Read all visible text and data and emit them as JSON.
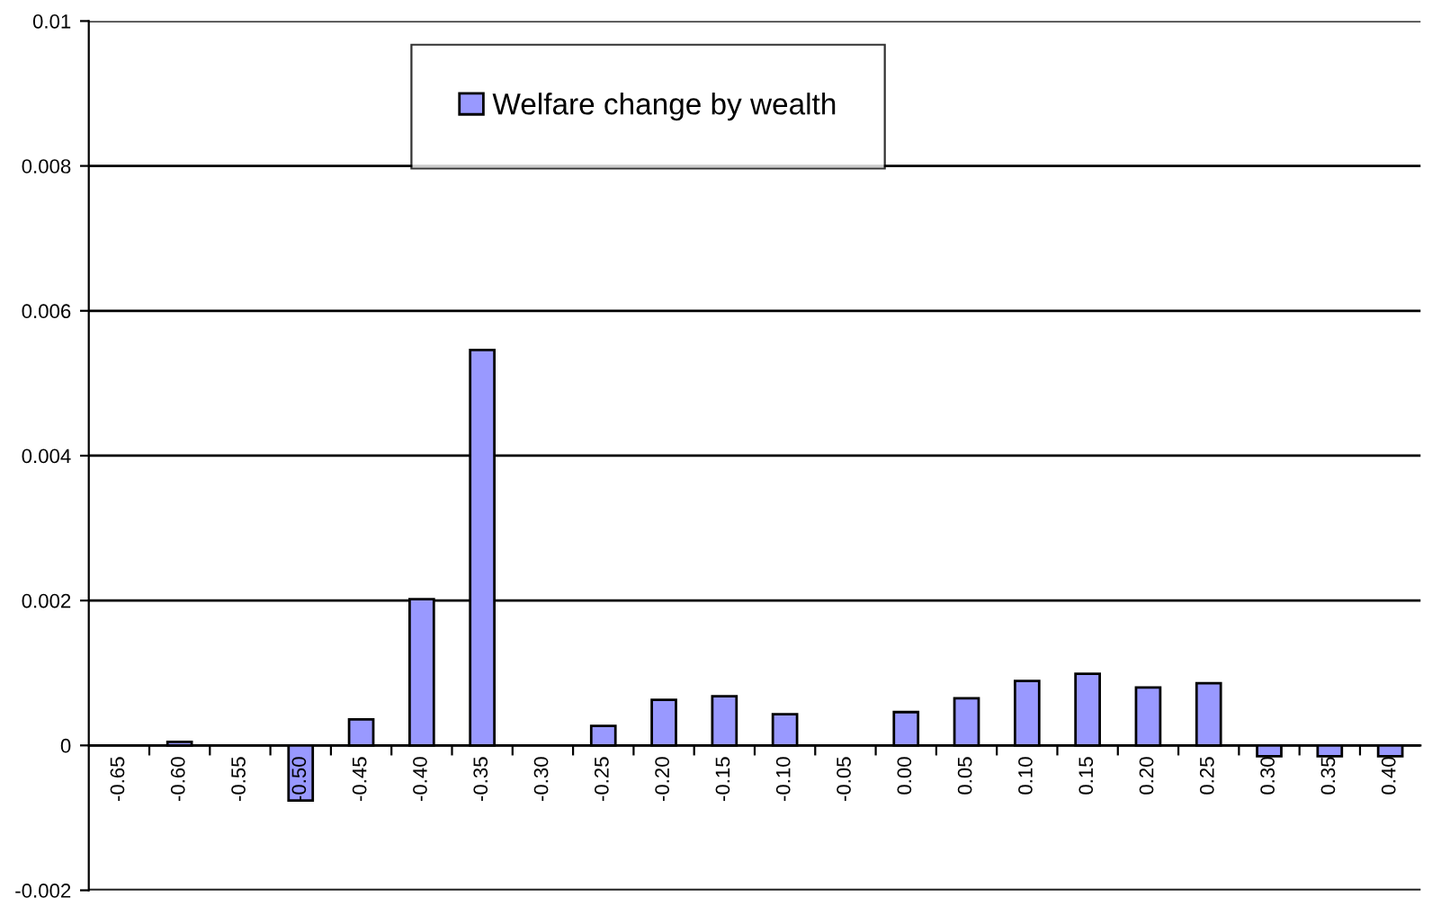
{
  "chart_data": {
    "type": "bar",
    "categories": [
      "-0.65",
      "-0.60",
      "-0.55",
      "-0.50",
      "-0.45",
      "-0.40",
      "-0.35",
      "-0.30",
      "-0.25",
      "-0.20",
      "-0.15",
      "-0.10",
      "-0.05",
      "0.00",
      "0.05",
      "0.10",
      "0.15",
      "0.20",
      "0.25",
      "0.30",
      "0.35",
      "0.40"
    ],
    "series": [
      {
        "name": "Welfare change by wealth",
        "color": "#9999ff",
        "values": [
          null,
          5e-05,
          null,
          -0.00076,
          0.00036,
          0.00202,
          0.00546,
          null,
          0.00027,
          0.00063,
          0.00068,
          0.00043,
          null,
          0.00046,
          0.00065,
          0.00089,
          0.00099,
          0.0008,
          0.00086,
          -0.00015,
          -0.00015,
          -0.00015
        ]
      }
    ],
    "ylim": [
      -0.002,
      0.01
    ],
    "yticks": [
      -0.002,
      0,
      0.002,
      0.004,
      0.006,
      0.008,
      0.01
    ],
    "grid": "y",
    "legend": "top"
  }
}
